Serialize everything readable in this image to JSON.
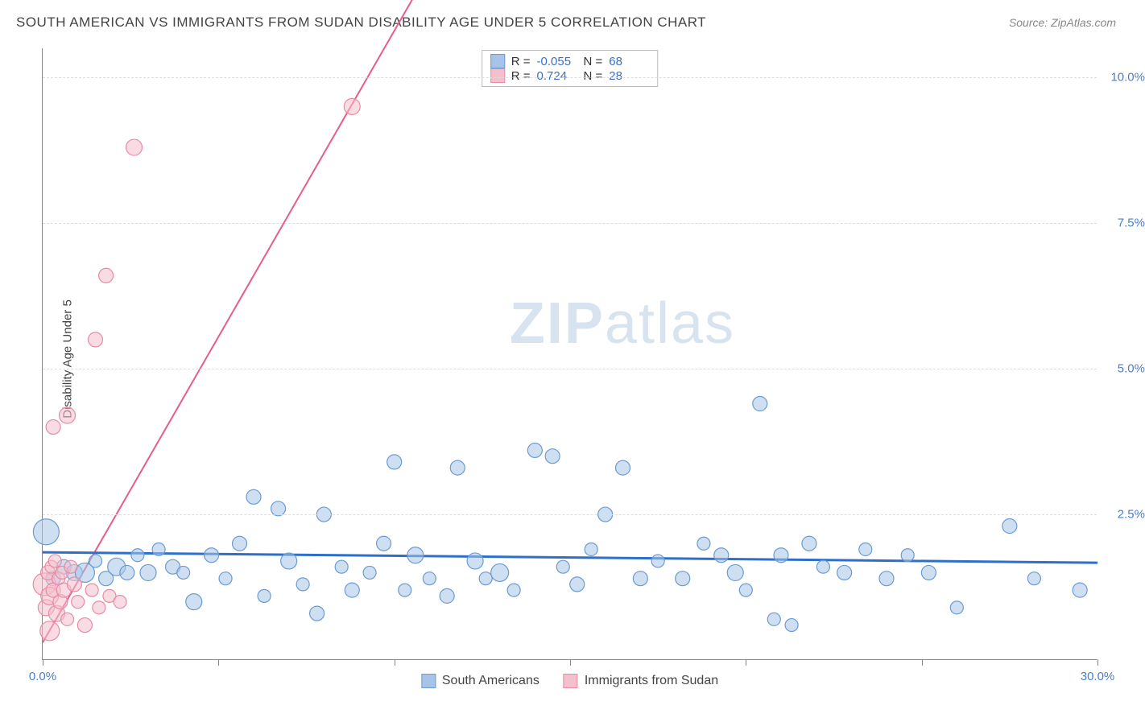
{
  "title": "SOUTH AMERICAN VS IMMIGRANTS FROM SUDAN DISABILITY AGE UNDER 5 CORRELATION CHART",
  "source_label": "Source:",
  "source_name": "ZipAtlas.com",
  "ylabel": "Disability Age Under 5",
  "watermark_a": "ZIP",
  "watermark_b": "atlas",
  "chart": {
    "type": "scatter",
    "xlim": [
      0,
      30
    ],
    "ylim": [
      0,
      10.5
    ],
    "xticks": [
      0,
      5,
      10,
      15,
      20,
      25,
      30
    ],
    "xtick_labels": {
      "0": "0.0%",
      "30": "30.0%"
    },
    "yticks": [
      2.5,
      5.0,
      7.5,
      10.0
    ],
    "ytick_labels": [
      "2.5%",
      "5.0%",
      "7.5%",
      "10.0%"
    ],
    "grid_color": "#dddddd",
    "axis_color": "#888888",
    "background_color": "#ffffff",
    "series": [
      {
        "name": "South Americans",
        "color_fill": "#a7c4e8",
        "color_stroke": "#6b9bd1",
        "marker_opacity": 0.55,
        "regression": {
          "slope": -0.006,
          "intercept": 1.85,
          "color": "#2e6fc9",
          "width": 3
        },
        "stats": {
          "R": "-0.055",
          "N": "68"
        },
        "points": [
          {
            "x": 0.1,
            "y": 2.2,
            "r": 16
          },
          {
            "x": 0.3,
            "y": 1.4,
            "r": 9
          },
          {
            "x": 0.6,
            "y": 1.6,
            "r": 9
          },
          {
            "x": 0.9,
            "y": 1.5,
            "r": 10
          },
          {
            "x": 1.2,
            "y": 1.5,
            "r": 12
          },
          {
            "x": 1.5,
            "y": 1.7,
            "r": 8
          },
          {
            "x": 1.8,
            "y": 1.4,
            "r": 9
          },
          {
            "x": 2.1,
            "y": 1.6,
            "r": 11
          },
          {
            "x": 2.4,
            "y": 1.5,
            "r": 9
          },
          {
            "x": 2.7,
            "y": 1.8,
            "r": 8
          },
          {
            "x": 3.0,
            "y": 1.5,
            "r": 10
          },
          {
            "x": 3.3,
            "y": 1.9,
            "r": 8
          },
          {
            "x": 3.7,
            "y": 1.6,
            "r": 9
          },
          {
            "x": 4.0,
            "y": 1.5,
            "r": 8
          },
          {
            "x": 4.3,
            "y": 1.0,
            "r": 10
          },
          {
            "x": 4.8,
            "y": 1.8,
            "r": 9
          },
          {
            "x": 5.2,
            "y": 1.4,
            "r": 8
          },
          {
            "x": 5.6,
            "y": 2.0,
            "r": 9
          },
          {
            "x": 6.0,
            "y": 2.8,
            "r": 9
          },
          {
            "x": 6.3,
            "y": 1.1,
            "r": 8
          },
          {
            "x": 6.7,
            "y": 2.6,
            "r": 9
          },
          {
            "x": 7.0,
            "y": 1.7,
            "r": 10
          },
          {
            "x": 7.4,
            "y": 1.3,
            "r": 8
          },
          {
            "x": 7.8,
            "y": 0.8,
            "r": 9
          },
          {
            "x": 8.0,
            "y": 2.5,
            "r": 9
          },
          {
            "x": 8.5,
            "y": 1.6,
            "r": 8
          },
          {
            "x": 8.8,
            "y": 1.2,
            "r": 9
          },
          {
            "x": 9.3,
            "y": 1.5,
            "r": 8
          },
          {
            "x": 9.7,
            "y": 2.0,
            "r": 9
          },
          {
            "x": 10.0,
            "y": 3.4,
            "r": 9
          },
          {
            "x": 10.3,
            "y": 1.2,
            "r": 8
          },
          {
            "x": 10.6,
            "y": 1.8,
            "r": 10
          },
          {
            "x": 11.0,
            "y": 1.4,
            "r": 8
          },
          {
            "x": 11.5,
            "y": 1.1,
            "r": 9
          },
          {
            "x": 11.8,
            "y": 3.3,
            "r": 9
          },
          {
            "x": 12.3,
            "y": 1.7,
            "r": 10
          },
          {
            "x": 12.6,
            "y": 1.4,
            "r": 8
          },
          {
            "x": 13.0,
            "y": 1.5,
            "r": 11
          },
          {
            "x": 13.4,
            "y": 1.2,
            "r": 8
          },
          {
            "x": 14.0,
            "y": 3.6,
            "r": 9
          },
          {
            "x": 14.5,
            "y": 3.5,
            "r": 9
          },
          {
            "x": 14.8,
            "y": 1.6,
            "r": 8
          },
          {
            "x": 15.2,
            "y": 1.3,
            "r": 9
          },
          {
            "x": 15.6,
            "y": 1.9,
            "r": 8
          },
          {
            "x": 16.0,
            "y": 2.5,
            "r": 9
          },
          {
            "x": 16.5,
            "y": 3.3,
            "r": 9
          },
          {
            "x": 17.0,
            "y": 1.4,
            "r": 9
          },
          {
            "x": 17.5,
            "y": 1.7,
            "r": 8
          },
          {
            "x": 18.2,
            "y": 1.4,
            "r": 9
          },
          {
            "x": 18.8,
            "y": 2.0,
            "r": 8
          },
          {
            "x": 19.3,
            "y": 1.8,
            "r": 9
          },
          {
            "x": 19.7,
            "y": 1.5,
            "r": 10
          },
          {
            "x": 20.0,
            "y": 1.2,
            "r": 8
          },
          {
            "x": 20.4,
            "y": 4.4,
            "r": 9
          },
          {
            "x": 20.8,
            "y": 0.7,
            "r": 8
          },
          {
            "x": 21.0,
            "y": 1.8,
            "r": 9
          },
          {
            "x": 21.3,
            "y": 0.6,
            "r": 8
          },
          {
            "x": 21.8,
            "y": 2.0,
            "r": 9
          },
          {
            "x": 22.2,
            "y": 1.6,
            "r": 8
          },
          {
            "x": 22.8,
            "y": 1.5,
            "r": 9
          },
          {
            "x": 23.4,
            "y": 1.9,
            "r": 8
          },
          {
            "x": 24.0,
            "y": 1.4,
            "r": 9
          },
          {
            "x": 24.6,
            "y": 1.8,
            "r": 8
          },
          {
            "x": 25.2,
            "y": 1.5,
            "r": 9
          },
          {
            "x": 26.0,
            "y": 0.9,
            "r": 8
          },
          {
            "x": 27.5,
            "y": 2.3,
            "r": 9
          },
          {
            "x": 28.2,
            "y": 1.4,
            "r": 8
          },
          {
            "x": 29.5,
            "y": 1.2,
            "r": 9
          }
        ]
      },
      {
        "name": "Immigrants from Sudan",
        "color_fill": "#f4c0cc",
        "color_stroke": "#e88ba4",
        "marker_opacity": 0.55,
        "regression": {
          "slope": 1.05,
          "intercept": 0.3,
          "color": "#e75d87",
          "width": 2
        },
        "stats": {
          "R": "0.724",
          "N": "28"
        },
        "points": [
          {
            "x": 0.05,
            "y": 1.3,
            "r": 14
          },
          {
            "x": 0.1,
            "y": 0.9,
            "r": 10
          },
          {
            "x": 0.15,
            "y": 1.5,
            "r": 9
          },
          {
            "x": 0.2,
            "y": 1.1,
            "r": 11
          },
          {
            "x": 0.25,
            "y": 1.6,
            "r": 8
          },
          {
            "x": 0.3,
            "y": 1.2,
            "r": 9
          },
          {
            "x": 0.35,
            "y": 1.7,
            "r": 8
          },
          {
            "x": 0.4,
            "y": 0.8,
            "r": 10
          },
          {
            "x": 0.45,
            "y": 1.4,
            "r": 8
          },
          {
            "x": 0.5,
            "y": 1.0,
            "r": 9
          },
          {
            "x": 0.55,
            "y": 1.5,
            "r": 8
          },
          {
            "x": 0.6,
            "y": 1.2,
            "r": 9
          },
          {
            "x": 0.7,
            "y": 0.7,
            "r": 8
          },
          {
            "x": 0.8,
            "y": 1.6,
            "r": 8
          },
          {
            "x": 0.9,
            "y": 1.3,
            "r": 9
          },
          {
            "x": 1.0,
            "y": 1.0,
            "r": 8
          },
          {
            "x": 1.2,
            "y": 0.6,
            "r": 9
          },
          {
            "x": 1.4,
            "y": 1.2,
            "r": 8
          },
          {
            "x": 1.6,
            "y": 0.9,
            "r": 8
          },
          {
            "x": 1.9,
            "y": 1.1,
            "r": 8
          },
          {
            "x": 2.2,
            "y": 1.0,
            "r": 8
          },
          {
            "x": 0.3,
            "y": 4.0,
            "r": 9
          },
          {
            "x": 0.7,
            "y": 4.2,
            "r": 10
          },
          {
            "x": 1.5,
            "y": 5.5,
            "r": 9
          },
          {
            "x": 1.8,
            "y": 6.6,
            "r": 9
          },
          {
            "x": 2.6,
            "y": 8.8,
            "r": 10
          },
          {
            "x": 8.8,
            "y": 9.5,
            "r": 10
          },
          {
            "x": 0.2,
            "y": 0.5,
            "r": 12
          }
        ]
      }
    ]
  },
  "legend_top": {
    "R_label": "R =",
    "N_label": "N ="
  },
  "legend_bottom": {
    "series1": "South Americans",
    "series2": "Immigrants from Sudan"
  }
}
